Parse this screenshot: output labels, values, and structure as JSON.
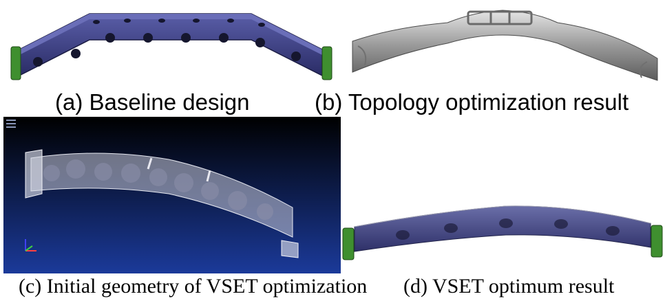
{
  "figure": {
    "panels": [
      {
        "id": "a",
        "caption": "(a) Baseline design"
      },
      {
        "id": "b",
        "caption": "(b) Topology optimization result"
      },
      {
        "id": "c",
        "caption": "(c) Initial geometry of VSET optimization"
      },
      {
        "id": "d",
        "caption": "(d) VSET optimum result"
      }
    ]
  },
  "colors": {
    "beam_blue": "#3a3d86",
    "bracket_green": "#3f8f2f",
    "metal_grey": "#a8a8a8",
    "viewport_top": "#000000",
    "viewport_bottom": "#1b3a9a"
  }
}
